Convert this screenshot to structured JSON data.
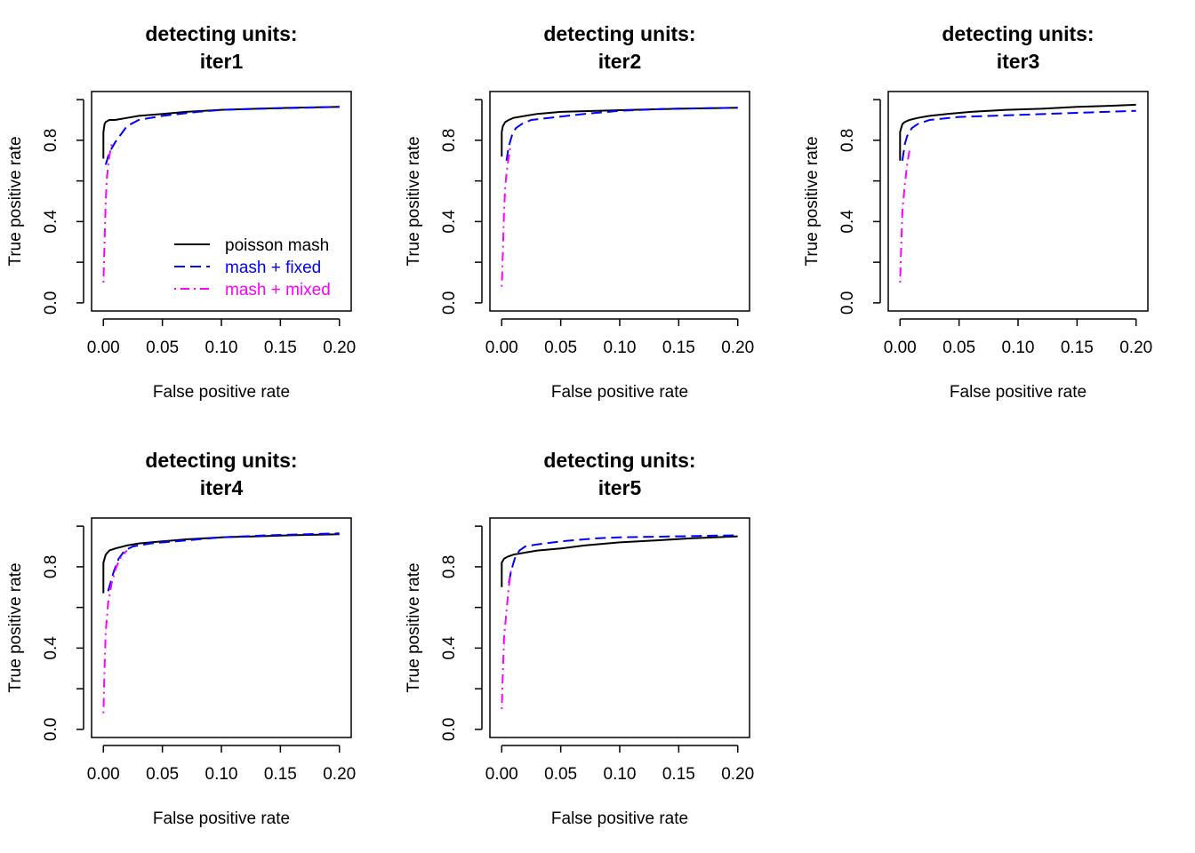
{
  "chart_data": [
    {
      "type": "line",
      "title": [
        "detecting units:",
        "iter1"
      ],
      "xlabel": "False positive rate",
      "ylabel": "True positive rate",
      "xlim": [
        0,
        0.2
      ],
      "ylim": [
        0,
        1
      ],
      "xticks": [
        0.0,
        0.05,
        0.1,
        0.15,
        0.2
      ],
      "xtick_labels": [
        "0.00",
        "0.05",
        "0.10",
        "0.15",
        "0.20"
      ],
      "yticks": [
        0.0,
        0.2,
        0.4,
        0.6,
        0.8,
        1.0
      ],
      "ytick_labels": [
        "0.0",
        "",
        "0.4",
        "",
        "0.8",
        ""
      ],
      "grid": false,
      "legend": {
        "position": "bottom-right",
        "entries": [
          "poisson mash",
          "mash + fixed",
          "mash + mixed"
        ]
      },
      "series": [
        {
          "name": "poisson mash",
          "color": "#000000",
          "dash": "solid",
          "x": [
            0,
            0,
            0.001,
            0.002,
            0.005,
            0.01,
            0.02,
            0.03,
            0.05,
            0.07,
            0.1,
            0.13,
            0.16,
            0.2
          ],
          "y": [
            0.71,
            0.84,
            0.88,
            0.89,
            0.9,
            0.9,
            0.91,
            0.92,
            0.93,
            0.94,
            0.95,
            0.955,
            0.96,
            0.965
          ]
        },
        {
          "name": "mash + fixed",
          "color": "#0000ff",
          "dash": "dashed",
          "x": [
            0.002,
            0.004,
            0.007,
            0.01,
            0.015,
            0.02,
            0.03,
            0.05,
            0.08,
            0.1,
            0.13,
            0.17,
            0.2
          ],
          "y": [
            0.68,
            0.72,
            0.76,
            0.79,
            0.83,
            0.87,
            0.9,
            0.92,
            0.94,
            0.95,
            0.955,
            0.96,
            0.965
          ]
        },
        {
          "name": "mash + mixed",
          "color": "#ff00ff",
          "dash": "dashdot",
          "x": [
            0.0,
            0.001,
            0.002,
            0.003,
            0.005,
            0.007
          ],
          "y": [
            0.1,
            0.3,
            0.5,
            0.62,
            0.72,
            0.78
          ]
        }
      ]
    },
    {
      "type": "line",
      "title": [
        "detecting units:",
        "iter2"
      ],
      "xlabel": "False positive rate",
      "ylabel": "True positive rate",
      "xlim": [
        0,
        0.2
      ],
      "ylim": [
        0,
        1
      ],
      "xticks": [
        0.0,
        0.05,
        0.1,
        0.15,
        0.2
      ],
      "xtick_labels": [
        "0.00",
        "0.05",
        "0.10",
        "0.15",
        "0.20"
      ],
      "yticks": [
        0.0,
        0.2,
        0.4,
        0.6,
        0.8,
        1.0
      ],
      "ytick_labels": [
        "0.0",
        "",
        "0.4",
        "",
        "0.8",
        ""
      ],
      "grid": false,
      "series": [
        {
          "name": "poisson mash",
          "color": "#000000",
          "dash": "solid",
          "x": [
            0,
            0,
            0.001,
            0.003,
            0.006,
            0.01,
            0.02,
            0.03,
            0.05,
            0.08,
            0.11,
            0.15,
            0.2
          ],
          "y": [
            0.72,
            0.84,
            0.87,
            0.89,
            0.9,
            0.91,
            0.92,
            0.93,
            0.94,
            0.945,
            0.95,
            0.955,
            0.96
          ]
        },
        {
          "name": "mash + fixed",
          "color": "#0000ff",
          "dash": "dashed",
          "x": [
            0.004,
            0.006,
            0.009,
            0.012,
            0.017,
            0.025,
            0.04,
            0.07,
            0.1,
            0.14,
            0.2
          ],
          "y": [
            0.7,
            0.77,
            0.83,
            0.86,
            0.88,
            0.9,
            0.91,
            0.93,
            0.945,
            0.955,
            0.96
          ]
        },
        {
          "name": "mash + mixed",
          "color": "#ff00ff",
          "dash": "dashdot",
          "x": [
            0.0,
            0.001,
            0.002,
            0.003,
            0.005,
            0.007
          ],
          "y": [
            0.08,
            0.25,
            0.45,
            0.58,
            0.68,
            0.76
          ]
        }
      ]
    },
    {
      "type": "line",
      "title": [
        "detecting units:",
        "iter3"
      ],
      "xlabel": "False positive rate",
      "ylabel": "True positive rate",
      "xlim": [
        0,
        0.2
      ],
      "ylim": [
        0,
        1
      ],
      "xticks": [
        0.0,
        0.05,
        0.1,
        0.15,
        0.2
      ],
      "xtick_labels": [
        "0.00",
        "0.05",
        "0.10",
        "0.15",
        "0.20"
      ],
      "yticks": [
        0.0,
        0.2,
        0.4,
        0.6,
        0.8,
        1.0
      ],
      "ytick_labels": [
        "0.0",
        "",
        "0.4",
        "",
        "0.8",
        ""
      ],
      "grid": false,
      "series": [
        {
          "name": "poisson mash",
          "color": "#000000",
          "dash": "solid",
          "x": [
            0,
            0,
            0.002,
            0.004,
            0.008,
            0.015,
            0.025,
            0.04,
            0.06,
            0.09,
            0.12,
            0.15,
            0.18,
            0.2
          ],
          "y": [
            0.7,
            0.84,
            0.88,
            0.89,
            0.9,
            0.91,
            0.92,
            0.93,
            0.94,
            0.95,
            0.955,
            0.965,
            0.97,
            0.975
          ]
        },
        {
          "name": "mash + fixed",
          "color": "#0000ff",
          "dash": "dashed",
          "x": [
            0.002,
            0.004,
            0.006,
            0.01,
            0.015,
            0.025,
            0.05,
            0.1,
            0.15,
            0.2
          ],
          "y": [
            0.7,
            0.78,
            0.82,
            0.86,
            0.88,
            0.9,
            0.915,
            0.925,
            0.935,
            0.945
          ]
        },
        {
          "name": "mash + mixed",
          "color": "#ff00ff",
          "dash": "dashdot",
          "x": [
            0.0,
            0.001,
            0.002,
            0.004,
            0.006,
            0.008
          ],
          "y": [
            0.1,
            0.28,
            0.45,
            0.58,
            0.68,
            0.75
          ]
        }
      ]
    },
    {
      "type": "line",
      "title": [
        "detecting units:",
        "iter4"
      ],
      "xlabel": "False positive rate",
      "ylabel": "True positive rate",
      "xlim": [
        0,
        0.2
      ],
      "ylim": [
        0,
        1
      ],
      "xticks": [
        0.0,
        0.05,
        0.1,
        0.15,
        0.2
      ],
      "xtick_labels": [
        "0.00",
        "0.05",
        "0.10",
        "0.15",
        "0.20"
      ],
      "yticks": [
        0.0,
        0.2,
        0.4,
        0.6,
        0.8,
        1.0
      ],
      "ytick_labels": [
        "0.0",
        "",
        "0.4",
        "",
        "0.8",
        ""
      ],
      "grid": false,
      "series": [
        {
          "name": "poisson mash",
          "color": "#000000",
          "dash": "solid",
          "x": [
            0,
            0,
            0.002,
            0.005,
            0.01,
            0.02,
            0.03,
            0.05,
            0.07,
            0.1,
            0.13,
            0.16,
            0.2
          ],
          "y": [
            0.67,
            0.82,
            0.86,
            0.88,
            0.89,
            0.905,
            0.915,
            0.925,
            0.935,
            0.945,
            0.95,
            0.955,
            0.96
          ]
        },
        {
          "name": "mash + fixed",
          "color": "#0000ff",
          "dash": "dashed",
          "x": [
            0.004,
            0.006,
            0.009,
            0.013,
            0.018,
            0.025,
            0.04,
            0.07,
            0.1,
            0.14,
            0.2
          ],
          "y": [
            0.68,
            0.72,
            0.78,
            0.84,
            0.88,
            0.9,
            0.915,
            0.93,
            0.945,
            0.955,
            0.965
          ]
        },
        {
          "name": "mash + mixed",
          "color": "#ff00ff",
          "dash": "dashdot",
          "x": [
            0.0,
            0.001,
            0.002,
            0.004,
            0.007,
            0.011,
            0.015,
            0.02
          ],
          "y": [
            0.08,
            0.3,
            0.48,
            0.62,
            0.72,
            0.8,
            0.85,
            0.88
          ]
        }
      ]
    },
    {
      "type": "line",
      "title": [
        "detecting units:",
        "iter5"
      ],
      "xlabel": "False positive rate",
      "ylabel": "True positive rate",
      "xlim": [
        0,
        0.2
      ],
      "ylim": [
        0,
        1
      ],
      "xticks": [
        0.0,
        0.05,
        0.1,
        0.15,
        0.2
      ],
      "xtick_labels": [
        "0.00",
        "0.05",
        "0.10",
        "0.15",
        "0.20"
      ],
      "yticks": [
        0.0,
        0.2,
        0.4,
        0.6,
        0.8,
        1.0
      ],
      "ytick_labels": [
        "0.0",
        "",
        "0.4",
        "",
        "0.8",
        ""
      ],
      "grid": false,
      "series": [
        {
          "name": "poisson mash",
          "color": "#000000",
          "dash": "solid",
          "x": [
            0,
            0,
            0.002,
            0.005,
            0.01,
            0.02,
            0.03,
            0.05,
            0.07,
            0.1,
            0.13,
            0.16,
            0.2
          ],
          "y": [
            0.7,
            0.82,
            0.84,
            0.85,
            0.86,
            0.87,
            0.88,
            0.89,
            0.905,
            0.92,
            0.93,
            0.94,
            0.95
          ]
        },
        {
          "name": "mash + fixed",
          "color": "#0000ff",
          "dash": "dashed",
          "x": [
            0.006,
            0.008,
            0.011,
            0.015,
            0.02,
            0.03,
            0.05,
            0.08,
            0.1,
            0.15,
            0.2
          ],
          "y": [
            0.72,
            0.78,
            0.84,
            0.88,
            0.9,
            0.91,
            0.925,
            0.94,
            0.945,
            0.95,
            0.955
          ]
        },
        {
          "name": "mash + mixed",
          "color": "#ff00ff",
          "dash": "dashdot",
          "x": [
            0.0,
            0.001,
            0.002,
            0.004,
            0.006,
            0.008
          ],
          "y": [
            0.1,
            0.28,
            0.45,
            0.58,
            0.7,
            0.79
          ]
        }
      ]
    }
  ]
}
